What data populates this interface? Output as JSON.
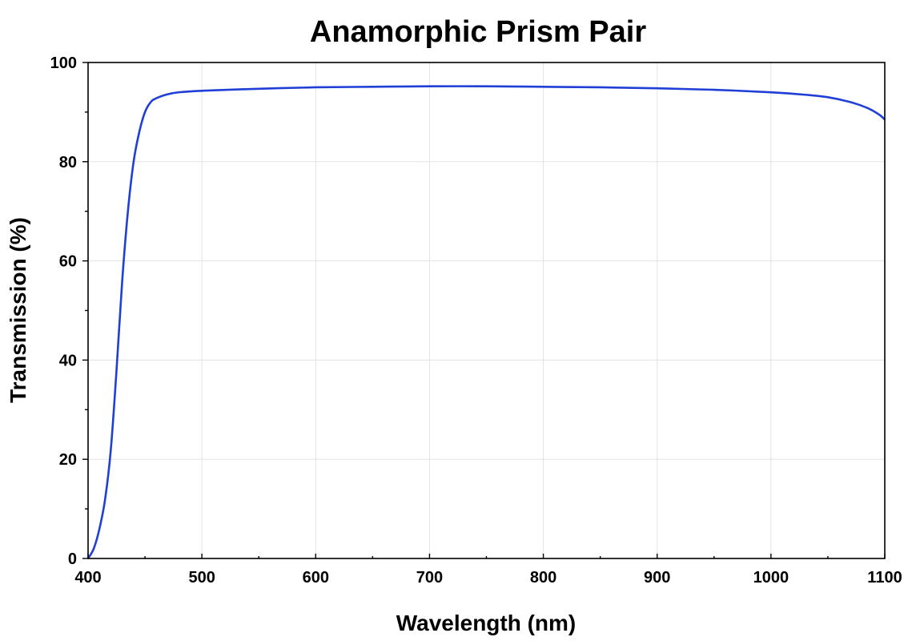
{
  "chart_data": {
    "type": "line",
    "title": "Anamorphic Prism Pair",
    "xlabel": "Wavelength (nm)",
    "ylabel": "Transmission (%)",
    "xlim": [
      400,
      1100
    ],
    "ylim": [
      0,
      100
    ],
    "x_ticks": [
      400,
      500,
      600,
      700,
      800,
      900,
      1000,
      1100
    ],
    "y_ticks": [
      0,
      20,
      40,
      60,
      80,
      100
    ],
    "grid": true,
    "legend": "none",
    "series": [
      {
        "color": "#1f3fd6",
        "x": [
          400,
          405,
          410,
          415,
          420,
          425,
          430,
          435,
          440,
          445,
          450,
          455,
          460,
          470,
          480,
          500,
          550,
          600,
          650,
          700,
          750,
          800,
          850,
          900,
          950,
          1000,
          1030,
          1050,
          1070,
          1085,
          1095,
          1100
        ],
        "y": [
          0,
          2,
          6,
          12,
          22,
          38,
          56,
          70,
          80,
          86,
          90,
          92,
          92.8,
          93.6,
          94,
          94.3,
          94.7,
          95,
          95.1,
          95.2,
          95.2,
          95.1,
          95,
          94.8,
          94.5,
          94,
          93.5,
          93,
          92,
          90.8,
          89.5,
          88.5
        ]
      }
    ]
  }
}
